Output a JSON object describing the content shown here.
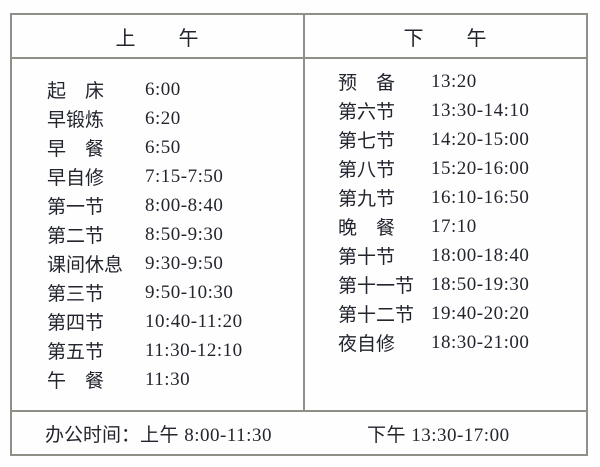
{
  "page": {
    "background_color": "#fefefe",
    "border_color": "#8f8f88",
    "text_color": "#23252e"
  },
  "table": {
    "columns": [
      {
        "header": "上　　午",
        "rows": [
          {
            "label": "起　床",
            "time": "6:00"
          },
          {
            "label": "早锻炼",
            "time": "6:20"
          },
          {
            "label": "早　餐",
            "time": "6:50"
          },
          {
            "label": "早自修",
            "time": "7:15-7:50"
          },
          {
            "label": "第一节",
            "time": "8:00-8:40"
          },
          {
            "label": "第二节",
            "time": "8:50-9:30"
          },
          {
            "label": "课间休息",
            "time": "9:30-9:50"
          },
          {
            "label": "第三节",
            "time": "9:50-10:30"
          },
          {
            "label": "第四节",
            "time": "10:40-11:20"
          },
          {
            "label": "第五节",
            "time": "11:30-12:10"
          },
          {
            "label": "午　餐",
            "time": "11:30"
          }
        ]
      },
      {
        "header": "下　　午",
        "rows": [
          {
            "label": "预　备",
            "time": "13:20"
          },
          {
            "label": "第六节",
            "time": "13:30-14:10"
          },
          {
            "label": "第七节",
            "time": "14:20-15:00"
          },
          {
            "label": "第八节",
            "time": "15:20-16:00"
          },
          {
            "label": "第九节",
            "time": "16:10-16:50"
          },
          {
            "label": "晚　餐",
            "time": "17:10"
          },
          {
            "label": "第十节",
            "time": "18:00-18:40"
          },
          {
            "label": "第十一节",
            "time": "18:50-19:30"
          },
          {
            "label": "第十二节",
            "time": "19:40-20:20"
          },
          {
            "label": "夜自修",
            "time": "18:30-21:00"
          }
        ]
      }
    ],
    "footer": {
      "office_label": "办公时间：",
      "morning_hours": "上午 8:00-11:30",
      "afternoon_hours": "下午 13:30-17:00"
    }
  }
}
